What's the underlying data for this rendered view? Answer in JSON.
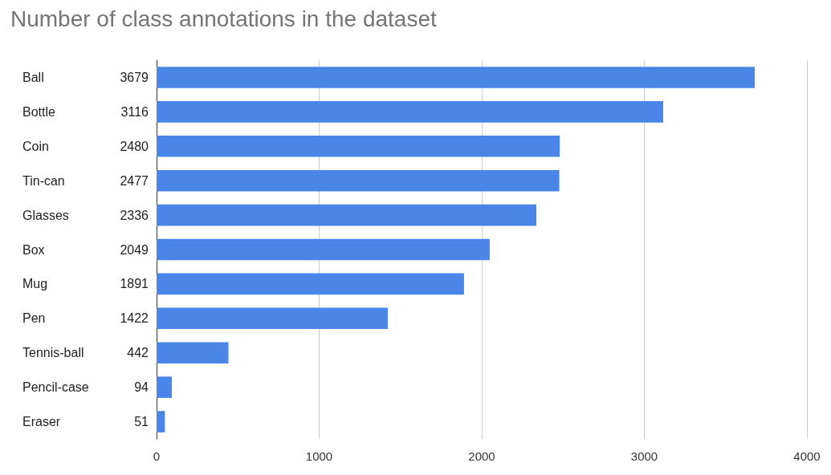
{
  "chart_data": {
    "type": "bar",
    "orientation": "horizontal",
    "title": "Number of class annotations in the dataset",
    "categories": [
      "Ball",
      "Bottle",
      "Coin",
      "Tin-can",
      "Glasses",
      "Box",
      "Mug",
      "Pen",
      "Tennis-ball",
      "Pencil-case",
      "Eraser"
    ],
    "values": [
      3679,
      3116,
      2480,
      2477,
      2336,
      2049,
      1891,
      1422,
      442,
      94,
      51
    ],
    "color": "#4a86e8",
    "xlim": [
      0,
      4000
    ],
    "xticks": [
      0,
      1000,
      2000,
      3000,
      4000
    ],
    "grid": "x",
    "data_labels": true
  }
}
